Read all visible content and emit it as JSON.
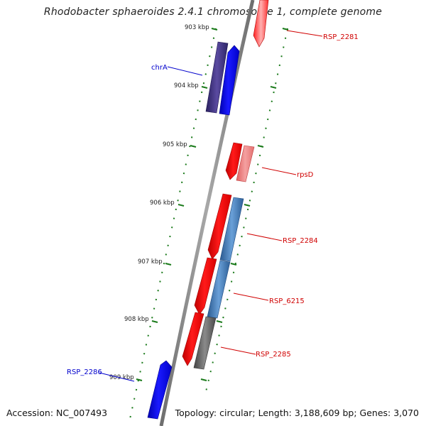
{
  "title": "Rhodobacter sphaeroides 2.4.1 chromosome 1, complete genome",
  "footer": {
    "accession": "Accession: NC_007493",
    "summary": "Topology: circular; Length: 3,188,609 bp; Genes: 3,070"
  },
  "colors": {
    "backbone": "#808080",
    "tick": "#1a7a1a",
    "plus_label": "#d00000",
    "minus_label": "#0000cc"
  },
  "ticks": [
    "903 kbp",
    "904 kbp",
    "905 kbp",
    "906 kbp",
    "907 kbp",
    "908 kbp",
    "909 kbp"
  ],
  "gene_labels": [
    {
      "text": "RSP_2281",
      "color": "#d00000"
    },
    {
      "text": "chrA",
      "color": "#0000cc"
    },
    {
      "text": "rpsD",
      "color": "#d00000"
    },
    {
      "text": "RSP_2284",
      "color": "#d00000"
    },
    {
      "text": "RSP_6215",
      "color": "#d00000"
    },
    {
      "text": "RSP_2285",
      "color": "#d00000"
    },
    {
      "text": "RSP_2286",
      "color": "#0000cc"
    }
  ]
}
